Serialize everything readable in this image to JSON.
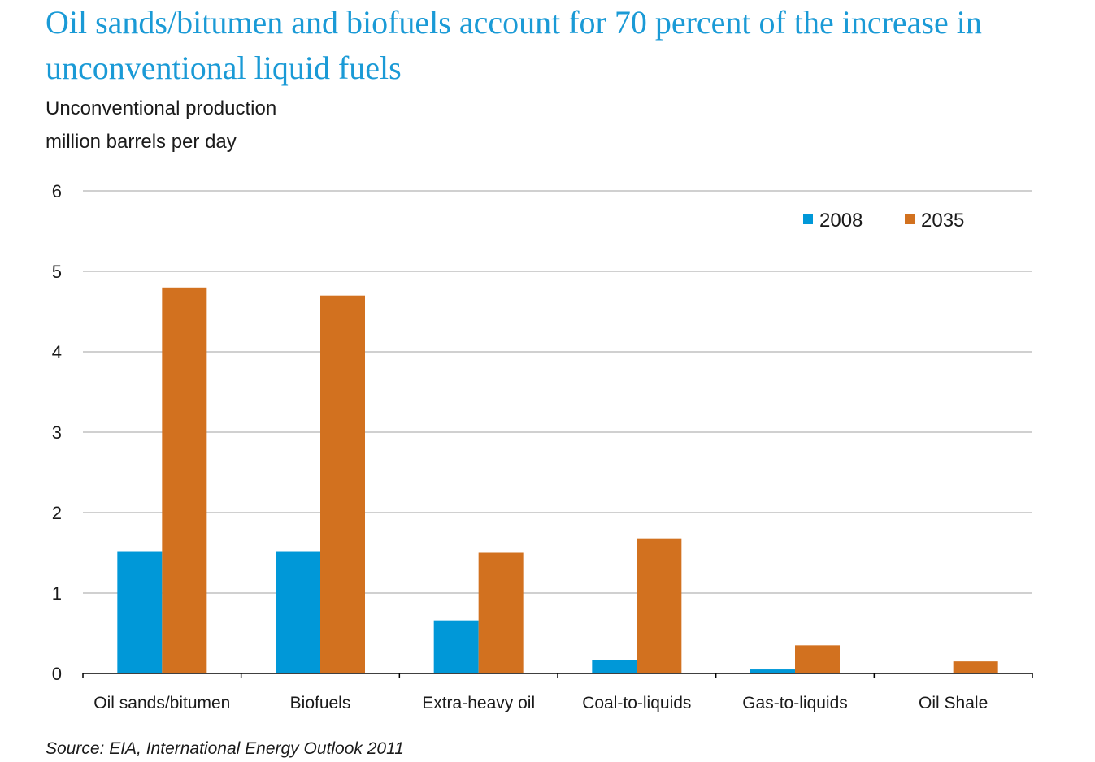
{
  "colors": {
    "title": "#1a9ad6",
    "series_2008": "#0098d8",
    "series_2035": "#d2711f",
    "gridline": "#b3b3b3",
    "axis": "#000000"
  },
  "chart_data": {
    "type": "bar",
    "title": "Oil sands/bitumen and biofuels account for 70 percent of the increase in unconventional liquid fuels",
    "subtitle": "Unconventional production",
    "ylabel": "million barrels per day",
    "xlabel": "",
    "categories": [
      "Oil sands/bitumen",
      "Biofuels",
      "Extra-heavy oil",
      "Coal-to-liquids",
      "Gas-to-liquids",
      "Oil Shale"
    ],
    "series": [
      {
        "name": "2008",
        "values": [
          1.52,
          1.52,
          0.66,
          0.17,
          0.05,
          0.0
        ]
      },
      {
        "name": "2035",
        "values": [
          4.8,
          4.7,
          1.5,
          1.68,
          0.35,
          0.15
        ]
      }
    ],
    "ylim": [
      0,
      6
    ],
    "yticks": [
      "0",
      "1",
      "2",
      "3",
      "4",
      "5",
      "6"
    ],
    "grid": true,
    "legend": "top-right",
    "source": "Source:  EIA, International Energy Outlook 2011"
  }
}
